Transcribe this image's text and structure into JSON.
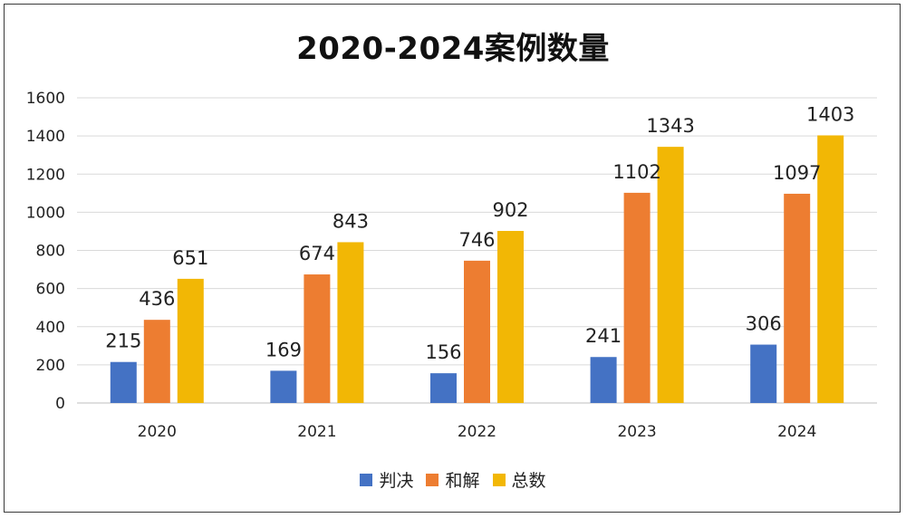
{
  "chart_data": {
    "type": "bar",
    "title": "2020-2024案例数量",
    "categories": [
      "2020",
      "2021",
      "2022",
      "2023",
      "2024"
    ],
    "series": [
      {
        "name": "判决",
        "values": [
          215,
          169,
          156,
          241,
          306
        ],
        "color": "#4472C4"
      },
      {
        "name": "和解",
        "values": [
          436,
          674,
          746,
          1102,
          1097
        ],
        "color": "#ED7D31"
      },
      {
        "name": "总数",
        "values": [
          651,
          843,
          902,
          1343,
          1403
        ],
        "color": "#F2B705"
      }
    ],
    "ylim": [
      0,
      1600
    ],
    "yticks": [
      0,
      200,
      400,
      600,
      800,
      1000,
      1200,
      1400,
      1600
    ],
    "xlabel": "",
    "ylabel": "",
    "grid": true,
    "legend": "bottom-center"
  }
}
